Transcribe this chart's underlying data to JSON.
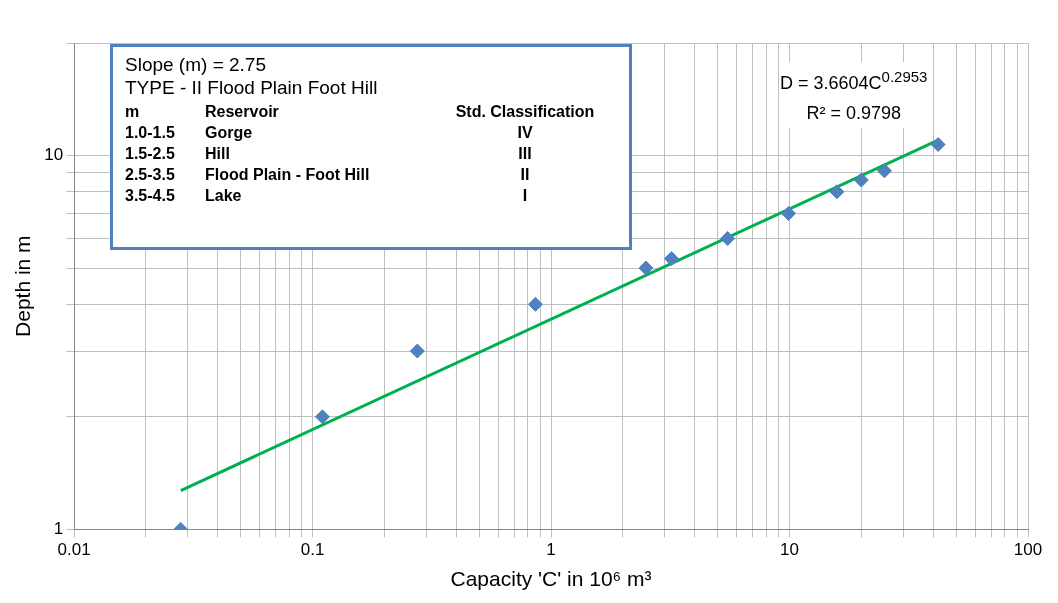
{
  "chart_data": {
    "type": "scatter",
    "xlabel": "Capacity 'C' in 10⁶ m³",
    "ylabel": "Depth in m",
    "log": "xy",
    "grid": true,
    "marker": "diamond",
    "xlim": [
      0.01,
      100
    ],
    "ylim": [
      1,
      20
    ],
    "xticks": [
      0.01,
      {
        "value": 0.02,
        "label": null
      },
      {
        "value": 0.03,
        "label": null
      },
      {
        "value": 0.04,
        "label": null
      },
      {
        "value": 0.05,
        "label": null
      },
      {
        "value": 0.06,
        "label": null
      },
      {
        "value": 0.07,
        "label": null
      },
      {
        "value": 0.08,
        "label": null
      },
      {
        "value": 0.09,
        "label": null
      },
      0.1,
      {
        "value": 0.2,
        "label": null
      },
      {
        "value": 0.3,
        "label": null
      },
      {
        "value": 0.4,
        "label": null
      },
      {
        "value": 0.5,
        "label": null
      },
      {
        "value": 0.6,
        "label": null
      },
      {
        "value": 0.7,
        "label": null
      },
      {
        "value": 0.8,
        "label": null
      },
      {
        "value": 0.9,
        "label": null
      },
      1,
      {
        "value": 2,
        "label": null
      },
      {
        "value": 3,
        "label": null
      },
      {
        "value": 4,
        "label": null
      },
      {
        "value": 5,
        "label": null
      },
      {
        "value": 6,
        "label": null
      },
      {
        "value": 7,
        "label": null
      },
      {
        "value": 8,
        "label": null
      },
      {
        "value": 9,
        "label": null
      },
      10,
      {
        "value": 20,
        "label": null
      },
      {
        "value": 30,
        "label": null
      },
      {
        "value": 40,
        "label": null
      },
      {
        "value": 50,
        "label": null
      },
      {
        "value": 60,
        "label": null
      },
      {
        "value": 70,
        "label": null
      },
      {
        "value": 80,
        "label": null
      },
      {
        "value": 90,
        "label": null
      },
      100
    ],
    "yticks": [
      1,
      {
        "value": 2,
        "label": null
      },
      {
        "value": 3,
        "label": null
      },
      {
        "value": 4,
        "label": null
      },
      {
        "value": 5,
        "label": null
      },
      {
        "value": 6,
        "label": null
      },
      {
        "value": 7,
        "label": null
      },
      {
        "value": 8,
        "label": null
      },
      {
        "value": 9,
        "label": null
      },
      10,
      {
        "value": 20,
        "label": null
      }
    ],
    "series": [
      {
        "color": "#4f81bd",
        "x": [
          0.028,
          0.11,
          0.275,
          0.86,
          2.5,
          3.2,
          5.5,
          9.9,
          15.8,
          20,
          25,
          42
        ],
        "values": [
          1,
          2,
          3,
          4,
          5,
          5.3,
          6,
          7,
          8,
          8.6,
          9.1,
          10.7
        ]
      },
      {
        "type": "line",
        "color": "#00b050",
        "marker": "none",
        "x": [
          0.028,
          42
        ],
        "values": [
          1.27,
          11.0
        ]
      }
    ],
    "annotations": [
      "Slope (m) = 2.75",
      "TYPE - II Flood Plain Foot Hill",
      "m",
      "Reservoir",
      "Std. Classification",
      "1.0-1.5",
      "Gorge",
      "IV",
      "1.5-2.5",
      "Hill",
      "III",
      "2.5-3.5",
      "Flood Plain - Foot Hill",
      "II",
      "3.5-4.5",
      "Lake",
      "I",
      "D = 3.6604C$^{0.2953}$",
      "R² = 0.9798"
    ]
  }
}
